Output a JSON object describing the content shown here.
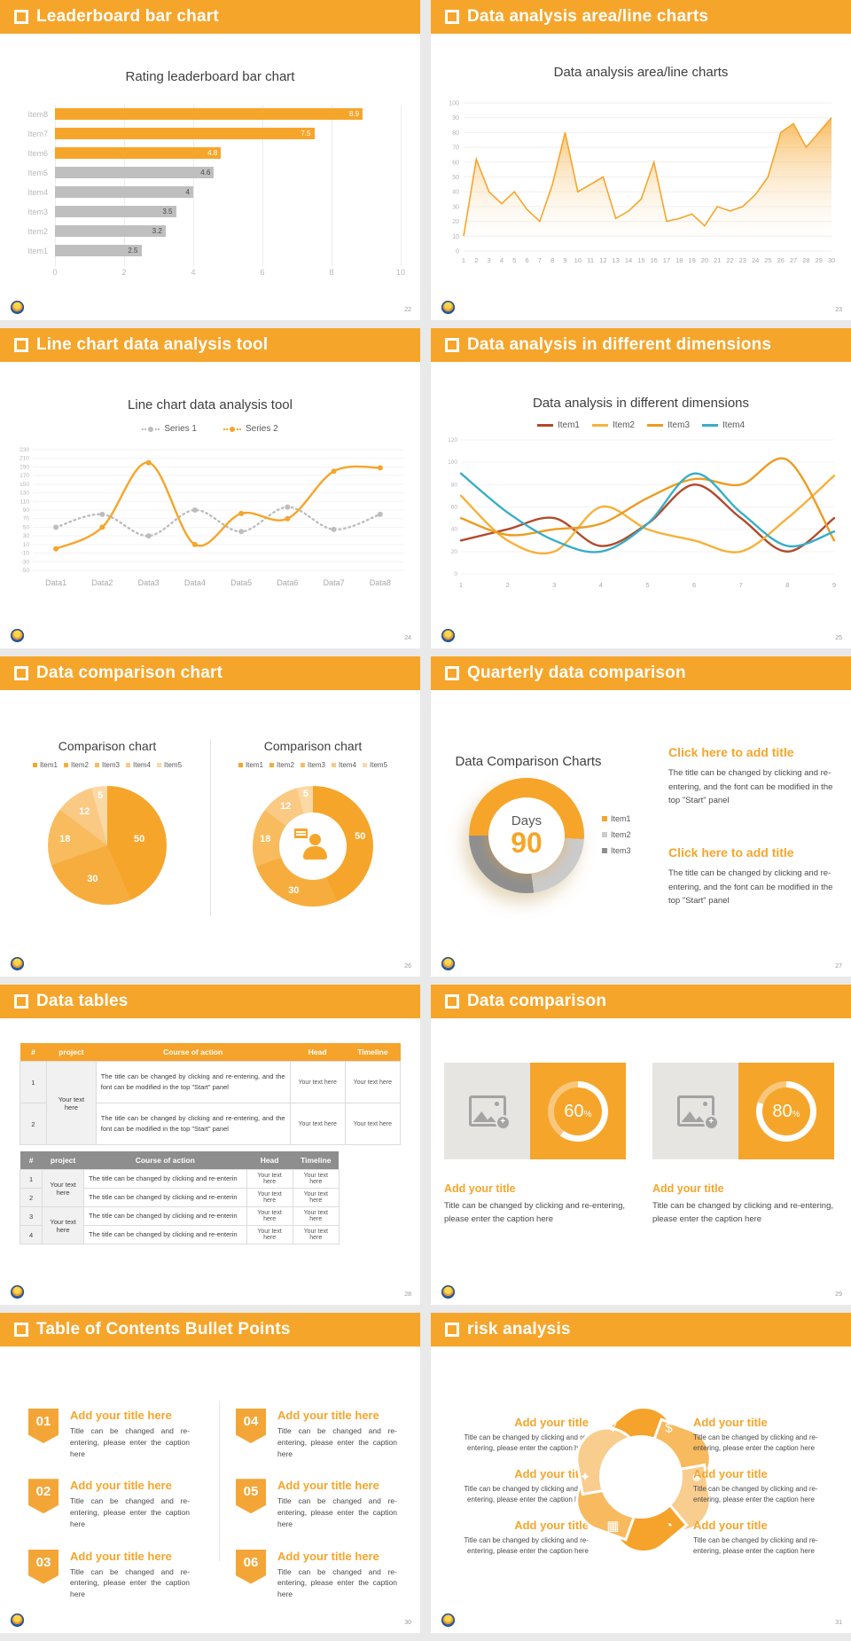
{
  "window": {
    "background": "#e9e9e9",
    "slide_background": "#ffffff",
    "accent": "#f6a52b"
  },
  "slides": [
    {
      "header": "Leaderboard bar chart",
      "page": "22"
    },
    {
      "header": "Data analysis area/line charts",
      "page": "23"
    },
    {
      "header": "Line chart data analysis tool",
      "page": "24"
    },
    {
      "header": "Data analysis in different dimensions",
      "page": "25"
    },
    {
      "header": "Data comparison chart",
      "page": "26"
    },
    {
      "header": "Quarterly data comparison",
      "page": "27",
      "blocks": [
        {
          "title": "Click here to add title",
          "body": "The title can be changed by clicking and re-entering, and the font can be modified in the top \"Start\" panel"
        },
        {
          "title": "Click here to add title",
          "body": "The title can be changed by clicking and re-entering, and the font can be modified in the top \"Start\" panel"
        }
      ]
    },
    {
      "header": "Data tables",
      "page": "28",
      "table1": {
        "headers": [
          "#",
          "project",
          "Course of action",
          "Head",
          "Timeline"
        ],
        "project_merged": "Your text here",
        "rows": [
          {
            "num": "1",
            "course": "The title can be changed by clicking and re-entering, and the font can be modified in the top \"Start\" panel",
            "head": "Your text here",
            "timeline": "Your text here"
          },
          {
            "num": "2",
            "course": "The title can be changed by clicking and re-entering, and the font can be modified in the top \"Start\" panel",
            "head": "Your text here",
            "timeline": "Your text here"
          }
        ]
      },
      "table2": {
        "headers": [
          "#",
          "project",
          "Course of action",
          "Head",
          "Timeline"
        ],
        "project_merged": [
          "Your text here",
          "Your text here"
        ],
        "rows": [
          {
            "num": "1",
            "course": "The title can be changed by clicking and re-enterin",
            "head": "Your text here",
            "timeline": "Your text here"
          },
          {
            "num": "2",
            "course": "The title can be changed by clicking and re-enterin",
            "head": "Your text here",
            "timeline": "Your text here"
          },
          {
            "num": "3",
            "course": "The title can be changed by clicking and re-enterin",
            "head": "Your text here",
            "timeline": "Your text here"
          },
          {
            "num": "4",
            "course": "The title can be changed by clicking and re-enterin",
            "head": "Your text here",
            "timeline": "Your text here"
          }
        ]
      }
    },
    {
      "header": "Data comparison",
      "page": "29",
      "cards": [
        {
          "percent": 60,
          "title": "Add your title",
          "caption": "Title can be changed by clicking and re-entering, please enter the caption here"
        },
        {
          "percent": 80,
          "title": "Add your title",
          "caption": "Title can be changed by clicking and re-entering, please enter the caption here"
        }
      ]
    },
    {
      "header": "Table of Contents Bullet Points",
      "page": "30",
      "items": [
        {
          "num": "01",
          "title": "Add your title here",
          "caption": "Title can be changed and re-entering, please enter the caption here"
        },
        {
          "num": "02",
          "title": "Add your title here",
          "caption": "Title can be changed and re-entering, please enter the caption here"
        },
        {
          "num": "03",
          "title": "Add your title here",
          "caption": "Title can be changed and re-entering, please enter the caption here"
        },
        {
          "num": "04",
          "title": "Add your title here",
          "caption": "Title can be changed and re-entering, please enter the caption here"
        },
        {
          "num": "05",
          "title": "Add your title here",
          "caption": "Title can be changed and re-entering, please enter the caption here"
        },
        {
          "num": "06",
          "title": "Add your title here",
          "caption": "Title can be changed and re-entering, please enter the caption here"
        }
      ]
    },
    {
      "header": "risk analysis",
      "page": "31",
      "items": [
        {
          "icon": "money-bag-icon",
          "title": "Add your title",
          "caption": "Title can be changed by clicking and re-entering, please enter the caption here"
        },
        {
          "icon": "agreement-icon",
          "title": "Add your title",
          "caption": "Title can be changed by clicking and re-entering, please enter the caption here"
        },
        {
          "icon": "building-icon",
          "title": "Add your title",
          "caption": "Title can be changed by clicking and re-entering, please enter the caption here"
        },
        {
          "icon": "coins-icon",
          "title": "Add your title",
          "caption": "Title can be changed by clicking and re-entering, please enter the caption here"
        },
        {
          "icon": "users-icon",
          "title": "Add your title",
          "caption": "Title can be changed by clicking and re-entering, please enter the caption here"
        },
        {
          "icon": "pie-chart-icon",
          "title": "Add your title",
          "caption": "Title can be changed by clicking and re-entering, please enter the caption here"
        }
      ]
    }
  ],
  "chart_data": [
    {
      "type": "bar",
      "orientation": "horizontal",
      "title": "Rating leaderboard bar chart",
      "categories": [
        "Item8",
        "Item7",
        "Item6",
        "Item5",
        "Item4",
        "Item3",
        "Item2",
        "Item1"
      ],
      "values": [
        8.9,
        7.5,
        4.8,
        4.6,
        4,
        3.5,
        3.2,
        2.5
      ],
      "bar_colors": [
        "#f6a52b",
        "#f6a52b",
        "#f6a52b",
        "#bfbfbf",
        "#bfbfbf",
        "#bfbfbf",
        "#bfbfbf",
        "#bfbfbf"
      ],
      "xlabel": "",
      "ylabel": "",
      "xlim": [
        0,
        10
      ],
      "xticks": [
        0,
        2,
        4,
        6,
        8,
        10
      ]
    },
    {
      "type": "area",
      "title": "Data analysis area/line charts",
      "x": [
        1,
        2,
        3,
        4,
        5,
        6,
        7,
        8,
        9,
        10,
        11,
        12,
        13,
        14,
        15,
        16,
        17,
        18,
        19,
        20,
        21,
        22,
        23,
        24,
        25,
        26,
        27,
        28,
        29,
        30
      ],
      "values": [
        10,
        62,
        40,
        32,
        40,
        28,
        20,
        45,
        80,
        40,
        45,
        50,
        22,
        27,
        35,
        60,
        20,
        22,
        25,
        17,
        30,
        27,
        30,
        38,
        50,
        80,
        86,
        70,
        80,
        90
      ],
      "line_color": "#f6a52b",
      "ylim": [
        0,
        100
      ],
      "yticks": [
        0,
        10,
        20,
        30,
        40,
        50,
        60,
        70,
        80,
        90,
        100
      ],
      "grid": true
    },
    {
      "type": "line",
      "title": "Line chart data analysis tool",
      "categories": [
        "Data1",
        "Data2",
        "Data3",
        "Data4",
        "Data5",
        "Data6",
        "Data7",
        "Data8"
      ],
      "ylim": [
        -50,
        230
      ],
      "ytick_step": 20,
      "grid": true,
      "legend_position": "top",
      "series": [
        {
          "name": "Series 1",
          "color": "#bdbdbd",
          "dashed": true,
          "values": [
            50,
            80,
            30,
            90,
            40,
            97,
            45,
            80
          ]
        },
        {
          "name": "Series 2",
          "color": "#f6a52b",
          "dashed": false,
          "values": [
            0,
            50,
            200,
            10,
            82,
            70,
            180,
            188
          ]
        }
      ]
    },
    {
      "type": "line",
      "title": "Data analysis in different dimensions",
      "x": [
        1,
        2,
        3,
        4,
        5,
        6,
        7,
        8,
        9
      ],
      "ylim": [
        0,
        120
      ],
      "ytick_step": 20,
      "grid": true,
      "legend_position": "top",
      "series": [
        {
          "name": "Item1",
          "color": "#b2492c",
          "values": [
            30,
            40,
            50,
            25,
            45,
            80,
            50,
            20,
            50
          ]
        },
        {
          "name": "Item2",
          "color": "#f7b13c",
          "values": [
            70,
            30,
            20,
            60,
            40,
            30,
            20,
            50,
            88
          ]
        },
        {
          "name": "Item3",
          "color": "#ec9c20",
          "values": [
            50,
            35,
            40,
            45,
            68,
            85,
            80,
            102,
            30
          ]
        },
        {
          "name": "Item4",
          "color": "#38aec6",
          "values": [
            90,
            55,
            30,
            20,
            45,
            90,
            55,
            25,
            38
          ]
        }
      ]
    },
    {
      "type": "pie",
      "title": "Comparison chart",
      "labels": [
        "Item1",
        "Item2",
        "Item3",
        "Item4",
        "Item5"
      ],
      "values": [
        50,
        30,
        18,
        12,
        5
      ],
      "colors": [
        "#f6a52b",
        "#f7ad3e",
        "#f8bb5d",
        "#fac983",
        "#fbd9a5"
      ]
    },
    {
      "type": "donut",
      "title": "Comparison chart",
      "center_icon": "person-icon",
      "labels": [
        "Item1",
        "Item2",
        "Item3",
        "Item4",
        "Item5"
      ],
      "values": [
        50,
        30,
        18,
        12,
        5
      ],
      "colors": [
        "#f6a52b",
        "#f7ad3e",
        "#f8bb5d",
        "#fac983",
        "#fbd9a5"
      ]
    },
    {
      "type": "donut",
      "title": "Data Comparison Charts",
      "center_label": "Days",
      "center_value": "90",
      "labels": [
        "Item1",
        "Item2",
        "Item3"
      ],
      "values": [
        51,
        22,
        27
      ],
      "colors": [
        "#f6a52b",
        "#cbcbcb",
        "#8f8f8f"
      ]
    },
    {
      "type": "gauge",
      "values": [
        60,
        80
      ],
      "unit": "%",
      "ring_color": "#ffffff"
    }
  ]
}
